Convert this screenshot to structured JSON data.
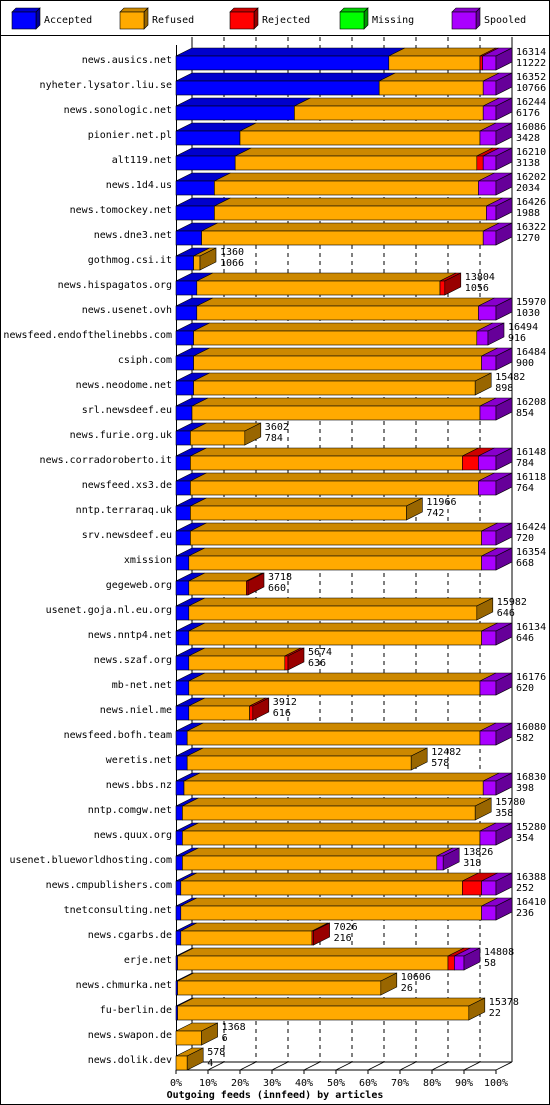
{
  "chart_data": {
    "type": "bar",
    "orientation": "horizontal",
    "stacked": true,
    "style": "3d",
    "title": "",
    "xlabel": "Outgoing feeds (innfeed) by articles",
    "x_ticks": [
      "0%",
      "10%",
      "20%",
      "30%",
      "40%",
      "50%",
      "60%",
      "70%",
      "80%",
      "90%",
      "100%"
    ],
    "xlim": [
      0,
      100
    ],
    "grid": true,
    "legend_position": "top",
    "legend": [
      {
        "key": "accepted",
        "label": "Accepted",
        "color": "#0000ff"
      },
      {
        "key": "refused",
        "label": "Refused",
        "color": "#ffaa00"
      },
      {
        "key": "rejected",
        "label": "Rejected",
        "color": "#ff0000"
      },
      {
        "key": "missing",
        "label": "Missing",
        "color": "#00ff00"
      },
      {
        "key": "spooled",
        "label": "Spooled",
        "color": "#aa00ff"
      }
    ],
    "rows": [
      {
        "name": "news.ausics.net",
        "offered": "16314",
        "accepted": "11222",
        "pct": {
          "accepted": 66.5,
          "refused": 28.5,
          "rejected": 0.8,
          "missing": 0,
          "spooled": 4.2
        }
      },
      {
        "name": "nyheter.lysator.liu.se",
        "offered": "16352",
        "accepted": "10766",
        "pct": {
          "accepted": 63.5,
          "refused": 32.5,
          "rejected": 0,
          "missing": 0,
          "spooled": 4
        }
      },
      {
        "name": "news.sonologic.net",
        "offered": "16244",
        "accepted": "6176",
        "pct": {
          "accepted": 37,
          "refused": 59,
          "rejected": 0,
          "missing": 0,
          "spooled": 4
        }
      },
      {
        "name": "pionier.net.pl",
        "offered": "16086",
        "accepted": "3428",
        "pct": {
          "accepted": 20,
          "refused": 75,
          "rejected": 0,
          "missing": 0,
          "spooled": 5
        }
      },
      {
        "name": "alt119.net",
        "offered": "16210",
        "accepted": "3138",
        "pct": {
          "accepted": 18.5,
          "refused": 75.5,
          "rejected": 2,
          "missing": 0,
          "spooled": 4
        }
      },
      {
        "name": "news.1d4.us",
        "offered": "16202",
        "accepted": "2034",
        "pct": {
          "accepted": 12,
          "refused": 82.5,
          "rejected": 0,
          "missing": 0,
          "spooled": 5.5
        }
      },
      {
        "name": "news.tomockey.net",
        "offered": "16426",
        "accepted": "1988",
        "pct": {
          "accepted": 12,
          "refused": 85,
          "rejected": 0,
          "missing": 0,
          "spooled": 3
        }
      },
      {
        "name": "news.dne3.net",
        "offered": "16322",
        "accepted": "1270",
        "pct": {
          "accepted": 8,
          "refused": 88,
          "rejected": 0,
          "missing": 0,
          "spooled": 4
        }
      },
      {
        "name": "gothmog.csi.it",
        "offered": "1360",
        "accepted": "1066",
        "pct": {
          "accepted": 5.5,
          "refused": 2,
          "rejected": 0,
          "missing": 0,
          "spooled": 0
        }
      },
      {
        "name": "news.hispagatos.org",
        "offered": "13804",
        "accepted": "1056",
        "pct": {
          "accepted": 6.5,
          "refused": 76,
          "rejected": 1.5,
          "missing": 0,
          "spooled": 0
        }
      },
      {
        "name": "news.usenet.ovh",
        "offered": "15970",
        "accepted": "1030",
        "pct": {
          "accepted": 6.5,
          "refused": 88,
          "rejected": 0,
          "missing": 0,
          "spooled": 5.5
        }
      },
      {
        "name": "newsfeed.endofthelinebbs.com",
        "offered": "16494",
        "accepted": "916",
        "pct": {
          "accepted": 5.5,
          "refused": 88.5,
          "rejected": 0,
          "missing": 0,
          "spooled": 3.5
        }
      },
      {
        "name": "csiph.com",
        "offered": "16484",
        "accepted": "900",
        "pct": {
          "accepted": 5.5,
          "refused": 90,
          "rejected": 0,
          "missing": 0,
          "spooled": 4.5
        }
      },
      {
        "name": "news.neodome.net",
        "offered": "15482",
        "accepted": "898",
        "pct": {
          "accepted": 5.5,
          "refused": 88,
          "rejected": 0,
          "missing": 0,
          "spooled": 0
        }
      },
      {
        "name": "srl.newsdeef.eu",
        "offered": "16208",
        "accepted": "854",
        "pct": {
          "accepted": 5,
          "refused": 90,
          "rejected": 0,
          "missing": 0,
          "spooled": 5
        }
      },
      {
        "name": "news.furie.org.uk",
        "offered": "3602",
        "accepted": "784",
        "pct": {
          "accepted": 4.5,
          "refused": 17,
          "rejected": 0,
          "missing": 0,
          "spooled": 0
        }
      },
      {
        "name": "news.corradoroberto.it",
        "offered": "16148",
        "accepted": "784",
        "pct": {
          "accepted": 4.5,
          "refused": 85,
          "rejected": 5,
          "missing": 0,
          "spooled": 5.5
        }
      },
      {
        "name": "newsfeed.xs3.de",
        "offered": "16118",
        "accepted": "764",
        "pct": {
          "accepted": 4.5,
          "refused": 90,
          "rejected": 0,
          "missing": 0,
          "spooled": 5.5
        }
      },
      {
        "name": "nntp.terraraq.uk",
        "offered": "11966",
        "accepted": "742",
        "pct": {
          "accepted": 4.5,
          "refused": 67.5,
          "rejected": 0,
          "missing": 0,
          "spooled": 0
        }
      },
      {
        "name": "srv.newsdeef.eu",
        "offered": "16424",
        "accepted": "720",
        "pct": {
          "accepted": 4.5,
          "refused": 91,
          "rejected": 0,
          "missing": 0,
          "spooled": 4.5
        }
      },
      {
        "name": "xmission",
        "offered": "16354",
        "accepted": "668",
        "pct": {
          "accepted": 4,
          "refused": 91.5,
          "rejected": 0,
          "missing": 0,
          "spooled": 4.5
        }
      },
      {
        "name": "gegeweb.org",
        "offered": "3718",
        "accepted": "660",
        "pct": {
          "accepted": 4,
          "refused": 18,
          "rejected": 0.5,
          "missing": 0,
          "spooled": 0
        }
      },
      {
        "name": "usenet.goja.nl.eu.org",
        "offered": "15982",
        "accepted": "646",
        "pct": {
          "accepted": 4,
          "refused": 90,
          "rejected": 0,
          "missing": 0,
          "spooled": 0
        }
      },
      {
        "name": "news.nntp4.net",
        "offered": "16134",
        "accepted": "646",
        "pct": {
          "accepted": 4,
          "refused": 91.5,
          "rejected": 0,
          "missing": 0,
          "spooled": 4.5
        }
      },
      {
        "name": "news.szaf.org",
        "offered": "5674",
        "accepted": "636",
        "pct": {
          "accepted": 4,
          "refused": 30,
          "rejected": 1,
          "missing": 0,
          "spooled": 0
        }
      },
      {
        "name": "mb-net.net",
        "offered": "16176",
        "accepted": "620",
        "pct": {
          "accepted": 4,
          "refused": 91,
          "rejected": 0,
          "missing": 0,
          "spooled": 5
        }
      },
      {
        "name": "news.niel.me",
        "offered": "3912",
        "accepted": "616",
        "pct": {
          "accepted": 4,
          "refused": 19,
          "rejected": 1,
          "missing": 0,
          "spooled": 0
        }
      },
      {
        "name": "newsfeed.bofh.team",
        "offered": "16080",
        "accepted": "582",
        "pct": {
          "accepted": 3.5,
          "refused": 91.5,
          "rejected": 0,
          "missing": 0,
          "spooled": 5
        }
      },
      {
        "name": "weretis.net",
        "offered": "12482",
        "accepted": "578",
        "pct": {
          "accepted": 3.5,
          "refused": 70,
          "rejected": 0,
          "missing": 0,
          "spooled": 0
        }
      },
      {
        "name": "news.bbs.nz",
        "offered": "16830",
        "accepted": "398",
        "pct": {
          "accepted": 2.5,
          "refused": 93.5,
          "rejected": 0,
          "missing": 0,
          "spooled": 4
        }
      },
      {
        "name": "nntp.comgw.net",
        "offered": "15780",
        "accepted": "358",
        "pct": {
          "accepted": 2,
          "refused": 91.5,
          "rejected": 0,
          "missing": 0,
          "spooled": 0
        }
      },
      {
        "name": "news.quux.org",
        "offered": "15280",
        "accepted": "354",
        "pct": {
          "accepted": 2,
          "refused": 93,
          "rejected": 0,
          "missing": 0,
          "spooled": 5
        }
      },
      {
        "name": "usenet.blueworldhosting.com",
        "offered": "13826",
        "accepted": "318",
        "pct": {
          "accepted": 2,
          "refused": 79.5,
          "rejected": 0,
          "missing": 0,
          "spooled": 2
        }
      },
      {
        "name": "news.cmpublishers.com",
        "offered": "16388",
        "accepted": "252",
        "pct": {
          "accepted": 1.5,
          "refused": 88,
          "rejected": 6,
          "missing": 0,
          "spooled": 4.5
        }
      },
      {
        "name": "tnetconsulting.net",
        "offered": "16410",
        "accepted": "236",
        "pct": {
          "accepted": 1.5,
          "refused": 94,
          "rejected": 0,
          "missing": 0,
          "spooled": 4.5
        }
      },
      {
        "name": "news.cgarbs.de",
        "offered": "7026",
        "accepted": "216",
        "pct": {
          "accepted": 1.5,
          "refused": 41,
          "rejected": 0.5,
          "missing": 0,
          "spooled": 0
        }
      },
      {
        "name": "erje.net",
        "offered": "14808",
        "accepted": "58",
        "pct": {
          "accepted": 0.5,
          "refused": 84.5,
          "rejected": 2,
          "missing": 0,
          "spooled": 3
        }
      },
      {
        "name": "news.chmurka.net",
        "offered": "10606",
        "accepted": "26",
        "pct": {
          "accepted": 0.5,
          "refused": 63.5,
          "rejected": 0,
          "missing": 0,
          "spooled": 0
        }
      },
      {
        "name": "fu-berlin.de",
        "offered": "15378",
        "accepted": "22",
        "pct": {
          "accepted": 0.5,
          "refused": 91,
          "rejected": 0,
          "missing": 0,
          "spooled": 0
        }
      },
      {
        "name": "news.swapon.de",
        "offered": "1368",
        "accepted": "6",
        "pct": {
          "accepted": 0,
          "refused": 8,
          "rejected": 0,
          "missing": 0,
          "spooled": 0
        }
      },
      {
        "name": "news.dolik.dev",
        "offered": "578",
        "accepted": "4",
        "pct": {
          "accepted": 0,
          "refused": 3.5,
          "rejected": 0,
          "missing": 0,
          "spooled": 0
        }
      }
    ]
  }
}
